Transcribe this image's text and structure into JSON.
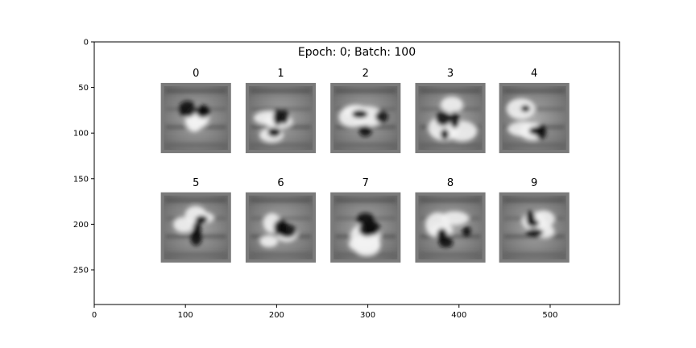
{
  "chart_data": {
    "type": "image-grid",
    "title": "Epoch: 0; Batch: 100",
    "xlim": [
      0,
      576
    ],
    "ylim": [
      288,
      0
    ],
    "x_ticks": [
      0,
      100,
      200,
      300,
      400,
      500
    ],
    "y_ticks": [
      0,
      50,
      100,
      150,
      200,
      250
    ],
    "grid": false,
    "colormap": "gray",
    "panels": [
      {
        "label": "0",
        "row": 0,
        "col": 0
      },
      {
        "label": "1",
        "row": 0,
        "col": 1
      },
      {
        "label": "2",
        "row": 0,
        "col": 2
      },
      {
        "label": "3",
        "row": 0,
        "col": 3
      },
      {
        "label": "4",
        "row": 0,
        "col": 4
      },
      {
        "label": "5",
        "row": 1,
        "col": 0
      },
      {
        "label": "6",
        "row": 1,
        "col": 1
      },
      {
        "label": "7",
        "row": 1,
        "col": 2
      },
      {
        "label": "8",
        "row": 1,
        "col": 3
      },
      {
        "label": "9",
        "row": 1,
        "col": 4
      }
    ]
  }
}
